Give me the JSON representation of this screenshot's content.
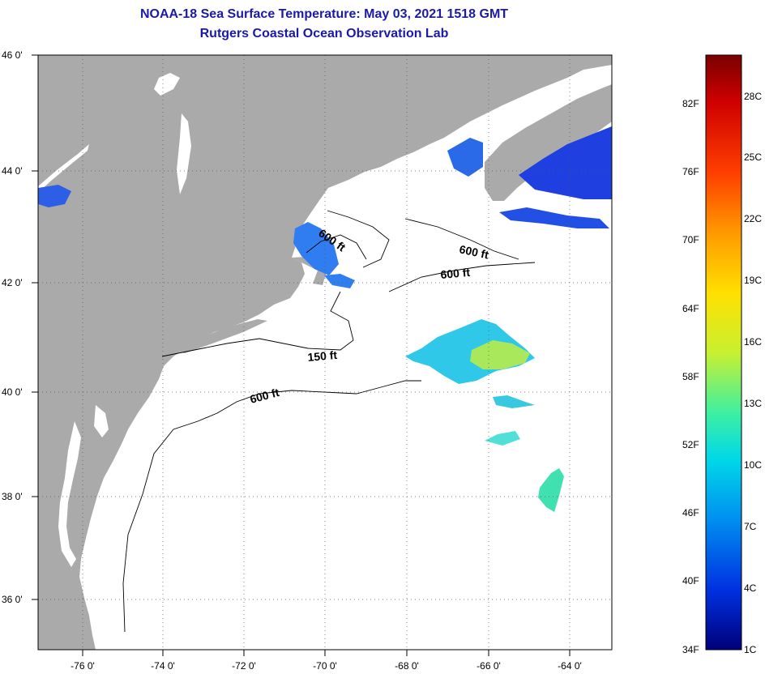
{
  "map": {
    "title": "NOAA-18 Sea Surface Temperature:  May 03, 2021 1518 GMT",
    "subtitle": "Rutgers Coastal Ocean Observation Lab",
    "lat_labels": [
      "46 0'",
      "44 0'",
      "42 0'",
      "40 0'",
      "38 0'",
      "36 0'"
    ],
    "lon_labels": [
      "-76 0'",
      "-74 0'",
      "-72 0'",
      "-70 0'",
      "-68 0'",
      "-66 0'",
      "-64 0'"
    ],
    "contour_labels": [
      "600 ft",
      "600 ft",
      "600 ft",
      "150 ft",
      "600 ft"
    ],
    "colors": {
      "land": "#aaaaaa",
      "ocean": "#ffffff",
      "title": "#1a1aa8"
    }
  },
  "colorbar": {
    "fahrenheit_labels": [
      "82F",
      "76F",
      "70F",
      "64F",
      "58F",
      "52F",
      "46F",
      "40F",
      "34F"
    ],
    "celsius_labels": [
      "28C",
      "25C",
      "22C",
      "19C",
      "16C",
      "13C",
      "10C",
      "7C",
      "4C",
      "1C"
    ],
    "colors": [
      "#7a0000",
      "#d00000",
      "#ff4000",
      "#ff9a00",
      "#ffe000",
      "#c8f030",
      "#40f0a0",
      "#00d8e8",
      "#0090f0",
      "#0030e0",
      "#00007a"
    ]
  }
}
